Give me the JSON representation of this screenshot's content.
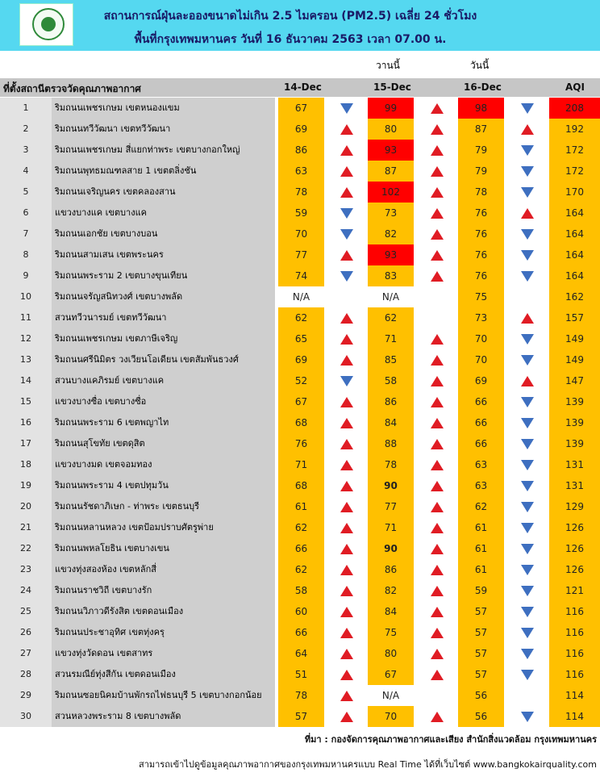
{
  "header": {
    "title_line1": "สถานการณ์ฝุ่นละอองขนาดไม่เกิน 2.5 ไมครอน (PM2.5) เฉลี่ย 24 ชั่วโมง",
    "title_line2": "พื้นที่กรุงเทพมหานคร วันที่ 16 ธันวาคม 2563 เวลา 07.00 น.",
    "background_color": "#55d8f0"
  },
  "labels": {
    "yesterday": "วานนี้",
    "today": "วันนี้"
  },
  "columns": {
    "location": "ที่ตั้งสถานีตรวจวัดคุณภาพอากาศ",
    "d1": "14-Dec",
    "d2": "15-Dec",
    "d3": "16-Dec",
    "aqi": "AQI"
  },
  "colors": {
    "moderate": "#ffc000",
    "unhealthy": "#ff0000",
    "up": "#e01c24",
    "down": "#3e6fc0"
  },
  "rows": [
    {
      "no": "1",
      "loc": "ริมถนนเพชรเกษม เขตหนองแขม",
      "d1": "67",
      "t1": "down",
      "d2": "99",
      "t2": "up",
      "d3": "98",
      "t3": "down",
      "aqi": "208"
    },
    {
      "no": "2",
      "loc": "ริมถนนทวีวัฒนา เขตทวีวัฒนา",
      "d1": "69",
      "t1": "up",
      "d2": "80",
      "t2": "up",
      "d3": "87",
      "t3": "up",
      "aqi": "192"
    },
    {
      "no": "3",
      "loc": "ริมถนนเพชรเกษม สี่แยกท่าพระ เขตบางกอกใหญ่",
      "d1": "86",
      "t1": "up",
      "d2": "93",
      "t2": "up",
      "d3": "79",
      "t3": "down",
      "aqi": "172"
    },
    {
      "no": "4",
      "loc": "ริมถนนพุทธมณฑลสาย 1 เขตตลิ่งชัน",
      "d1": "63",
      "t1": "up",
      "d2": "87",
      "t2": "up",
      "d3": "79",
      "t3": "down",
      "aqi": "172"
    },
    {
      "no": "5",
      "loc": "ริมถนนเจริญนคร เขตคลองสาน",
      "d1": "78",
      "t1": "up",
      "d2": "102",
      "t2": "up",
      "d3": "78",
      "t3": "down",
      "aqi": "170"
    },
    {
      "no": "6",
      "loc": "แขวงบางแค เขตบางแค",
      "d1": "59",
      "t1": "down",
      "d2": "73",
      "t2": "up",
      "d3": "76",
      "t3": "up",
      "aqi": "164"
    },
    {
      "no": "7",
      "loc": "ริมถนนเอกชัย เขตบางบอน",
      "d1": "70",
      "t1": "down",
      "d2": "82",
      "t2": "up",
      "d3": "76",
      "t3": "down",
      "aqi": "164"
    },
    {
      "no": "8",
      "loc": "ริมถนนสามเสน เขตพระนคร",
      "d1": "77",
      "t1": "up",
      "d2": "93",
      "t2": "up",
      "d3": "76",
      "t3": "down",
      "aqi": "164"
    },
    {
      "no": "9",
      "loc": "ริมถนนพระราม 2 เขตบางขุนเทียน",
      "d1": "74",
      "t1": "down",
      "d2": "83",
      "t2": "up",
      "d3": "76",
      "t3": "down",
      "aqi": "164"
    },
    {
      "no": "10",
      "loc": "ริมถนนจรัญสนิทวงศ์ เขตบางพลัด",
      "d1": "N/A",
      "t1": "",
      "d2": "N/A",
      "t2": "",
      "d3": "75",
      "t3": "",
      "aqi": "162"
    },
    {
      "no": "11",
      "loc": "สวนทวีวนารมย์ เขตทวีวัฒนา",
      "d1": "62",
      "t1": "up",
      "d2": "62",
      "t2": "",
      "d3": "73",
      "t3": "up",
      "aqi": "157"
    },
    {
      "no": "12",
      "loc": "ริมถนนเพชรเกษม เขตภาษีเจริญ",
      "d1": "65",
      "t1": "up",
      "d2": "71",
      "t2": "up",
      "d3": "70",
      "t3": "down",
      "aqi": "149"
    },
    {
      "no": "13",
      "loc": "ริมถนนศรีนิมิตร วงเวียนโอเดียน เขตสัมพันธวงศ์",
      "d1": "69",
      "t1": "up",
      "d2": "85",
      "t2": "up",
      "d3": "70",
      "t3": "down",
      "aqi": "149"
    },
    {
      "no": "14",
      "loc": "สวนบางแคภิรมย์ เขตบางแค",
      "d1": "52",
      "t1": "down",
      "d2": "58",
      "t2": "up",
      "d3": "69",
      "t3": "up",
      "aqi": "147"
    },
    {
      "no": "15",
      "loc": "แขวงบางซื่อ เขตบางซื่อ",
      "d1": "67",
      "t1": "up",
      "d2": "86",
      "t2": "up",
      "d3": "66",
      "t3": "down",
      "aqi": "139"
    },
    {
      "no": "16",
      "loc": "ริมถนนพระราม 6 เขตพญาไท",
      "d1": "68",
      "t1": "up",
      "d2": "84",
      "t2": "up",
      "d3": "66",
      "t3": "down",
      "aqi": "139"
    },
    {
      "no": "17",
      "loc": "ริมถนนสุโขทัย เขตดุสิต",
      "d1": "76",
      "t1": "up",
      "d2": "88",
      "t2": "up",
      "d3": "66",
      "t3": "down",
      "aqi": "139"
    },
    {
      "no": "18",
      "loc": "แขวงบางมด เขตจอมทอง",
      "d1": "71",
      "t1": "up",
      "d2": "78",
      "t2": "up",
      "d3": "63",
      "t3": "down",
      "aqi": "131"
    },
    {
      "no": "19",
      "loc": "ริมถนนพระราม 4 เขตปทุมวัน",
      "d1": "68",
      "t1": "up",
      "d2": "90",
      "t2": "up",
      "d3": "63",
      "t3": "down",
      "aqi": "131"
    },
    {
      "no": "20",
      "loc": "ริมถนนรัชดาภิเษก - ท่าพระ เขตธนบุรี",
      "d1": "61",
      "t1": "up",
      "d2": "77",
      "t2": "up",
      "d3": "62",
      "t3": "down",
      "aqi": "129"
    },
    {
      "no": "21",
      "loc": "ริมถนนหลานหลวง เขตป้อมปราบศัตรูพ่าย",
      "d1": "62",
      "t1": "up",
      "d2": "71",
      "t2": "up",
      "d3": "61",
      "t3": "down",
      "aqi": "126"
    },
    {
      "no": "22",
      "loc": "ริมถนนพหลโยธิน เขตบางเขน",
      "d1": "66",
      "t1": "up",
      "d2": "90",
      "t2": "up",
      "d3": "61",
      "t3": "down",
      "aqi": "126"
    },
    {
      "no": "23",
      "loc": "แขวงทุ่งสองห้อง เขตหลักสี่",
      "d1": "62",
      "t1": "up",
      "d2": "86",
      "t2": "up",
      "d3": "61",
      "t3": "down",
      "aqi": "126"
    },
    {
      "no": "24",
      "loc": "ริมถนนราชวิถี เขตบางรัก",
      "d1": "58",
      "t1": "up",
      "d2": "82",
      "t2": "up",
      "d3": "59",
      "t3": "down",
      "aqi": "121"
    },
    {
      "no": "25",
      "loc": "ริมถนนวิภาวดีรังสิต เขตดอนเมือง",
      "d1": "60",
      "t1": "up",
      "d2": "84",
      "t2": "up",
      "d3": "57",
      "t3": "down",
      "aqi": "116"
    },
    {
      "no": "26",
      "loc": "ริมถนนประชาอุทิศ เขตทุ่งครุ",
      "d1": "66",
      "t1": "up",
      "d2": "75",
      "t2": "up",
      "d3": "57",
      "t3": "down",
      "aqi": "116"
    },
    {
      "no": "27",
      "loc": "แขวงทุ่งวัดดอน เขตสาทร",
      "d1": "64",
      "t1": "up",
      "d2": "80",
      "t2": "up",
      "d3": "57",
      "t3": "down",
      "aqi": "116"
    },
    {
      "no": "28",
      "loc": "สวนรมณีย์ทุ่งสีกัน เขตดอนเมือง",
      "d1": "51",
      "t1": "up",
      "d2": "67",
      "t2": "up",
      "d3": "57",
      "t3": "down",
      "aqi": "116"
    },
    {
      "no": "29",
      "loc": "ริมถนนซอยนิคมบ้านพักรถไฟธนบุรี 5 เขตบางกอกน้อย",
      "d1": "78",
      "t1": "up",
      "d2": "N/A",
      "t2": "",
      "d3": "56",
      "t3": "",
      "aqi": "114"
    },
    {
      "no": "30",
      "loc": "สวนหลวงพระราม 8 เขตบางพลัด",
      "d1": "57",
      "t1": "up",
      "d2": "70",
      "t2": "up",
      "d3": "56",
      "t3": "down",
      "aqi": "114"
    }
  ],
  "footer": {
    "source": "ที่มา : กองจัดการคุณภาพอากาศและเสียง สำนักสิ่งแวดล้อม กรุงเทพมหานคร",
    "realtime": "สามารถเข้าไปดูข้อมูลคุณภาพอากาศของกรุงเทพมหานครแบบ Real Time ได้ที่เว็บไซต์ www.bangkokairquality.com"
  }
}
